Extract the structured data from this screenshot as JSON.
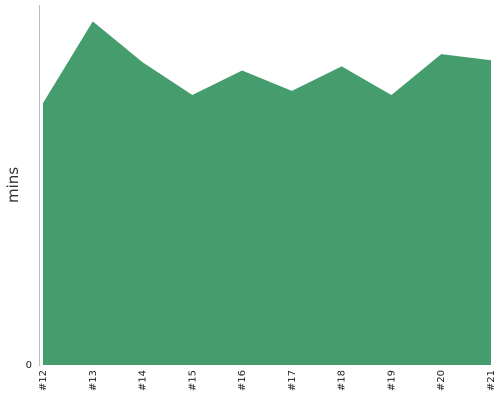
{
  "chart_data": {
    "type": "area",
    "title": "",
    "xlabel": "",
    "ylabel": "mins",
    "categories": [
      "#12",
      "#13",
      "#14",
      "#15",
      "#16",
      "#17",
      "#18",
      "#19",
      "#20",
      "#21"
    ],
    "series": [
      {
        "values": [
          6.4,
          8.4,
          7.4,
          6.6,
          7.2,
          6.7,
          7.3,
          6.6,
          7.6,
          7.45
        ]
      }
    ],
    "ylim": [
      0,
      8.8
    ],
    "y_ticks": [
      "0"
    ],
    "grid": false,
    "legend": "none",
    "colors": {
      "fill": "#459c6c",
      "axis": "#bbbbbb"
    }
  }
}
